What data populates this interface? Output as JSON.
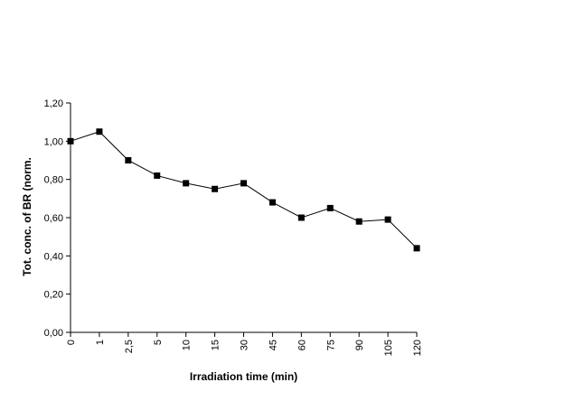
{
  "chart_data": {
    "type": "line",
    "title": "",
    "xlabel": "Irradiation time (min)",
    "ylabel": "Tot. conc. of BR (norm.",
    "categories": [
      "0",
      "1",
      "2,5",
      "5",
      "10",
      "15",
      "30",
      "45",
      "60",
      "75",
      "90",
      "105",
      "120"
    ],
    "series": [
      {
        "values": [
          1.0,
          1.05,
          0.9,
          0.82,
          0.78,
          0.75,
          0.78,
          0.68,
          0.6,
          0.65,
          0.58,
          0.59,
          0.44
        ],
        "color": "#000000",
        "marker": "square"
      }
    ],
    "ylim": [
      0,
      1.2
    ],
    "yticks": [
      0,
      0.2,
      0.4,
      0.6,
      0.8,
      1.0,
      1.2
    ],
    "ytick_labels": [
      "0,00",
      "0,20",
      "0,40",
      "0,60",
      "0,80",
      "1,00",
      "1,20"
    ],
    "grid": false,
    "legend": "none"
  }
}
